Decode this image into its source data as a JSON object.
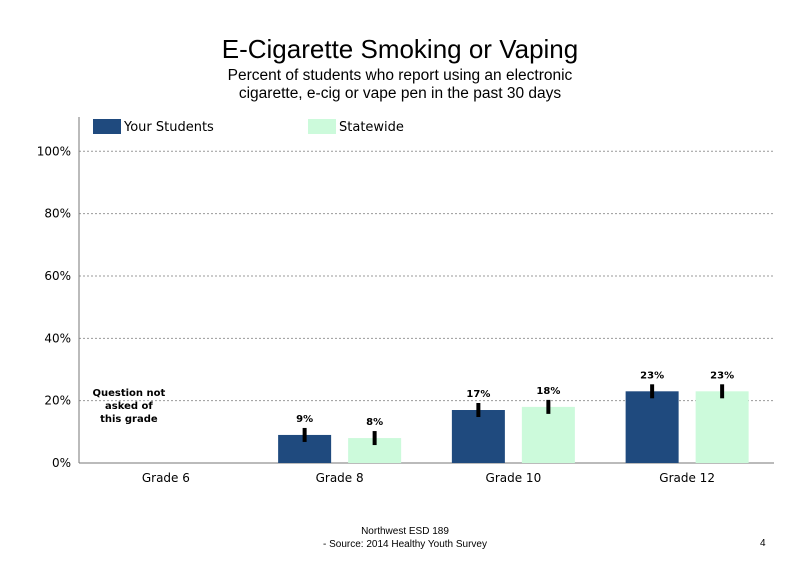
{
  "chart_data": {
    "type": "bar",
    "title": "E-Cigarette Smoking or Vaping",
    "subtitle": "Percent of students who report using an electronic cigarette, e-cig or vape pen in the past 30 days",
    "categories": [
      "Grade 6",
      "Grade 8",
      "Grade 10",
      "Grade 12"
    ],
    "series": [
      {
        "name": "Your Students",
        "color": "#1f4a7e",
        "values": [
          null,
          9,
          17,
          23
        ],
        "labels": [
          "",
          "9%",
          "17%",
          "23%"
        ]
      },
      {
        "name": "Statewide",
        "color": "#ccfadb",
        "values": [
          null,
          8,
          18,
          23
        ],
        "labels": [
          "",
          "8%",
          "18%",
          "23%"
        ]
      }
    ],
    "yticks": [
      "0%",
      "20%",
      "40%",
      "60%",
      "80%",
      "100%"
    ],
    "ytick_values": [
      0,
      20,
      40,
      60,
      80,
      100
    ],
    "ylim": [
      0,
      111
    ],
    "grid": true,
    "legend_position": "top",
    "annotation": {
      "category": "Grade 6",
      "lines": [
        "Question not",
        "asked of",
        "this grade"
      ]
    }
  },
  "footer": {
    "line1": "Northwest ESD  189",
    "line2": "- Source: 2014 Healthy  Youth Survey"
  },
  "page_number": "4"
}
